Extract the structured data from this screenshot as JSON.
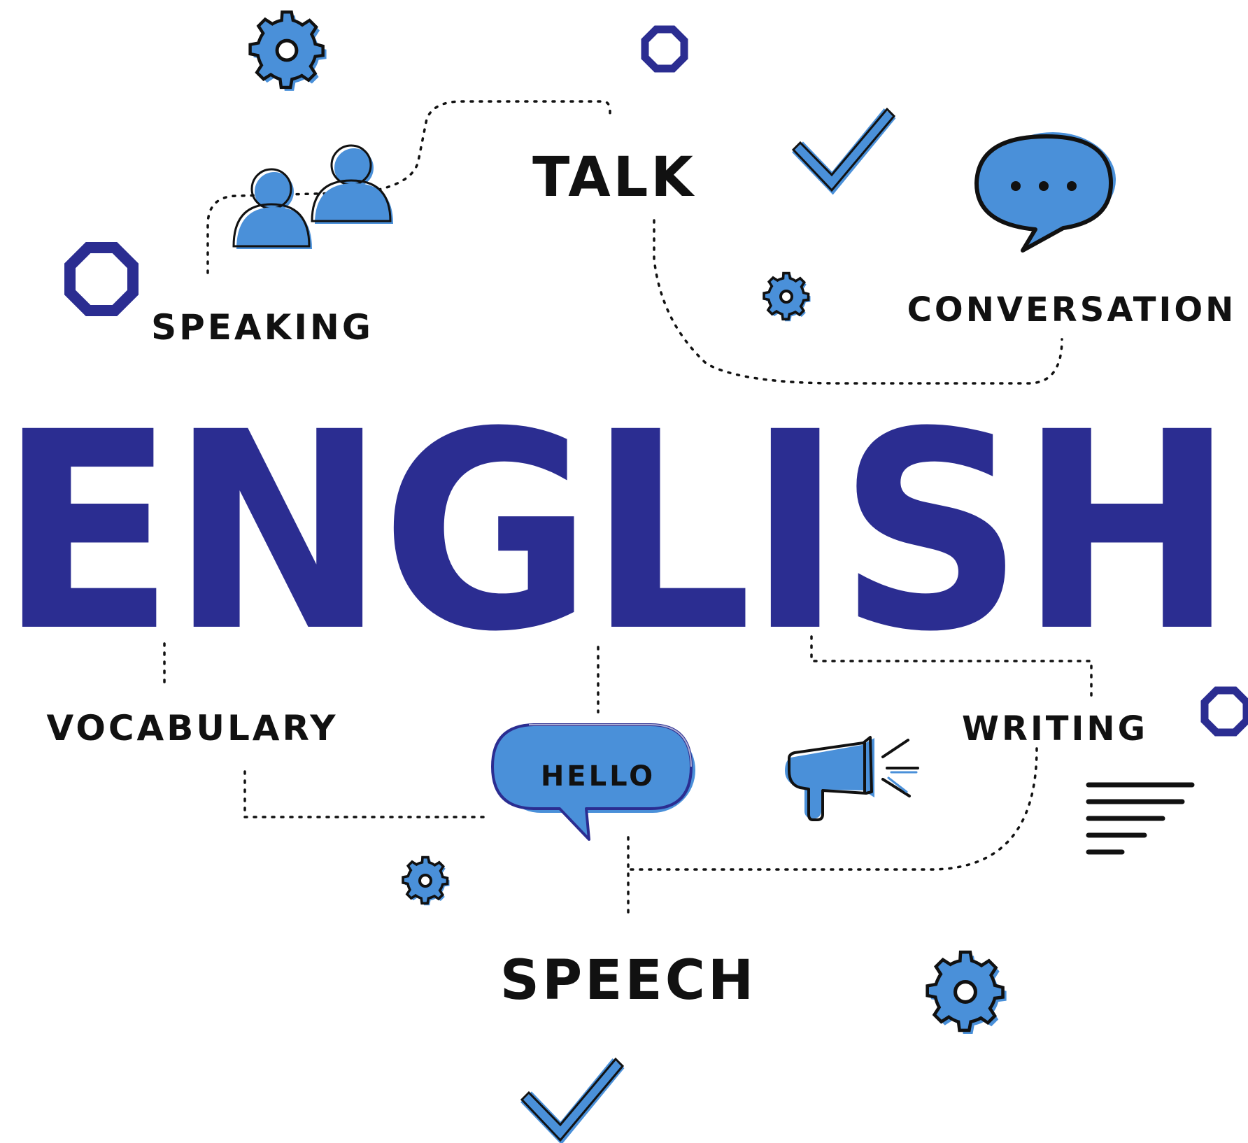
{
  "title": "ENGLISH",
  "words": {
    "talk": "TALK",
    "speaking": "SPEAKING",
    "conversation": "CONVERSATION",
    "vocabulary": "VOCABULARY",
    "writing": "WRITING",
    "speech": "SPEECH",
    "hello": "HELLO"
  },
  "colors": {
    "title": "#2b2d91",
    "accent_blue": "#4a90d9",
    "outline": "#111111",
    "octagon": "#2b2d91"
  },
  "icons": [
    "gear-icon",
    "octagon-icon",
    "people-icon",
    "checkmark-icon",
    "chat-bubble-icon",
    "megaphone-icon",
    "text-lines-icon"
  ]
}
